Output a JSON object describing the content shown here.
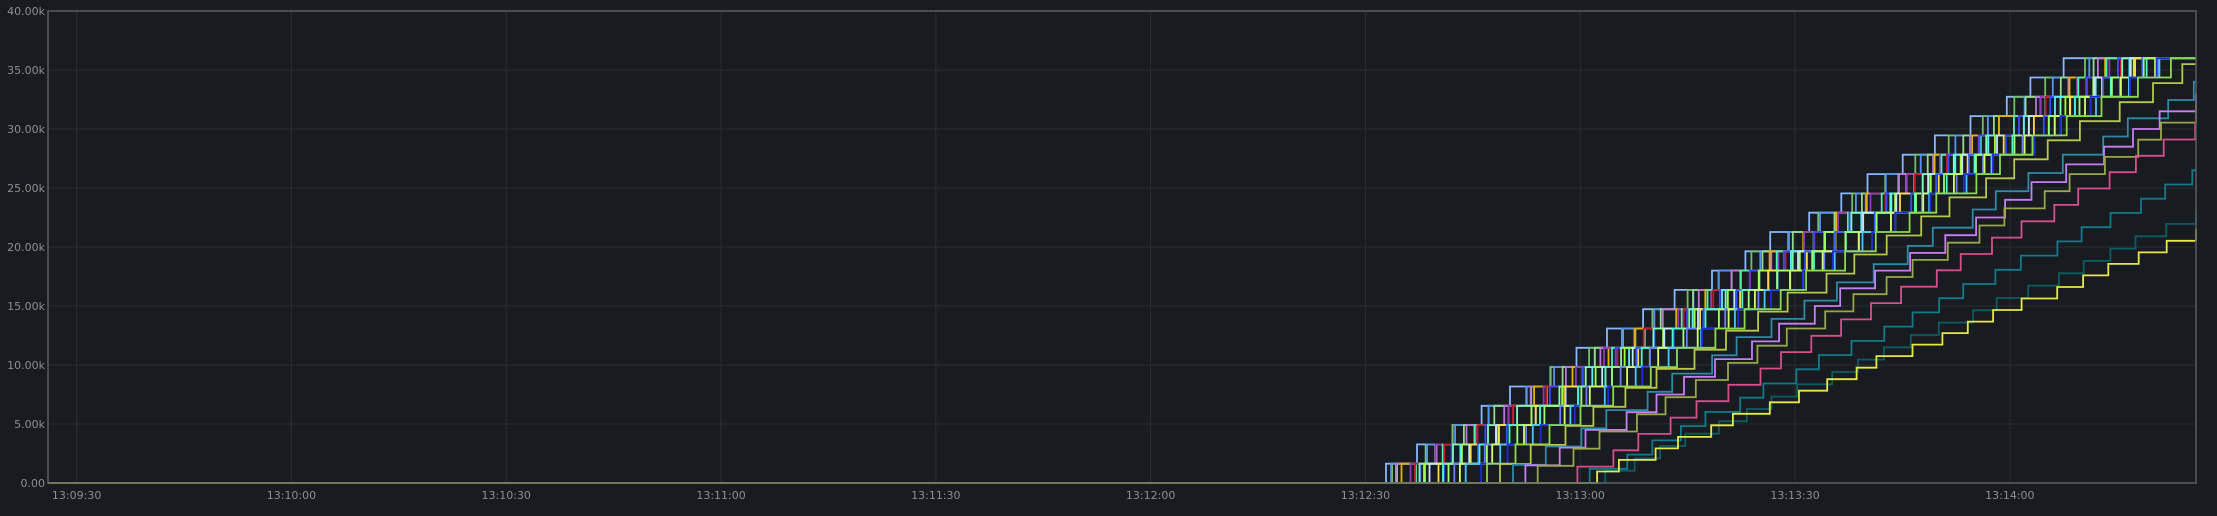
{
  "chart_data": {
    "type": "line",
    "step": true,
    "grid": true,
    "x_min": "13:09:26",
    "x_max": "13:14:26",
    "ylim": [
      0,
      40000
    ],
    "y_ticks": [
      {
        "value": 0,
        "label": "0.00"
      },
      {
        "value": 5000,
        "label": "5.00k"
      },
      {
        "value": 10000,
        "label": "10.00k"
      },
      {
        "value": 15000,
        "label": "15.00k"
      },
      {
        "value": 20000,
        "label": "20.00k"
      },
      {
        "value": 25000,
        "label": "25.00k"
      },
      {
        "value": 30000,
        "label": "30.00k"
      },
      {
        "value": 35000,
        "label": "35.00k"
      },
      {
        "value": 40000,
        "label": "40.00k"
      }
    ],
    "x_ticks": [
      {
        "value": "13:09:30",
        "label": "13:09:30"
      },
      {
        "value": "13:10:00",
        "label": "13:10:00"
      },
      {
        "value": "13:10:30",
        "label": "13:10:30"
      },
      {
        "value": "13:11:00",
        "label": "13:11:00"
      },
      {
        "value": "13:11:30",
        "label": "13:11:30"
      },
      {
        "value": "13:12:00",
        "label": "13:12:00"
      },
      {
        "value": "13:12:30",
        "label": "13:12:30"
      },
      {
        "value": "13:13:00",
        "label": "13:13:00"
      },
      {
        "value": "13:13:30",
        "label": "13:13:30"
      },
      {
        "value": "13:14:00",
        "label": "13:14:00"
      }
    ],
    "series": [
      {
        "color": "#8ab8ff",
        "start": "13:12:28",
        "end": "13:14:08",
        "final": 36000
      },
      {
        "color": "#73bf69",
        "start": "13:12:29",
        "end": "13:14:10",
        "final": 36000
      },
      {
        "color": "#5794f2",
        "start": "13:12:29",
        "end": "13:14:11",
        "final": 36000
      },
      {
        "color": "#96d98d",
        "start": "13:12:30",
        "end": "13:14:12",
        "final": 36000
      },
      {
        "color": "#b877d9",
        "start": "13:12:30",
        "end": "13:14:13",
        "final": 36000
      },
      {
        "color": "#e0b400",
        "start": "13:12:31",
        "end": "13:14:13",
        "final": 36000
      },
      {
        "color": "#8f3bb8",
        "start": "13:12:31",
        "end": "13:14:14",
        "final": 36000
      },
      {
        "color": "#4ff1b0",
        "start": "13:12:32",
        "end": "13:14:14",
        "final": 36000
      },
      {
        "color": "#c4162a",
        "start": "13:12:32",
        "end": "13:14:15",
        "final": 36000
      },
      {
        "color": "#3b49ff",
        "start": "13:12:33",
        "end": "13:14:15",
        "final": 36000
      },
      {
        "color": "#7dffb0",
        "start": "13:12:33",
        "end": "13:14:16",
        "final": 36000
      },
      {
        "color": "#56f0ff",
        "start": "13:12:34",
        "end": "13:14:16",
        "final": 36000
      },
      {
        "color": "#a6ff3c",
        "start": "13:12:34",
        "end": "13:14:17",
        "final": 36000
      },
      {
        "color": "#c5e6ff",
        "start": "13:12:35",
        "end": "13:14:17",
        "final": 36000
      },
      {
        "color": "#ffd94c",
        "start": "13:12:35",
        "end": "13:14:18",
        "final": 36000
      },
      {
        "color": "#2f52ff",
        "start": "13:12:36",
        "end": "13:14:18",
        "final": 36000
      },
      {
        "color": "#48ffc8",
        "start": "13:12:36",
        "end": "13:14:19",
        "final": 36000
      },
      {
        "color": "#9dff72",
        "start": "13:12:37",
        "end": "13:14:19",
        "final": 36000
      },
      {
        "color": "#6a7dff",
        "start": "13:12:38",
        "end": "13:14:20",
        "final": 36000
      },
      {
        "color": "#d4ff69",
        "start": "13:12:39",
        "end": "13:14:20",
        "final": 36000
      },
      {
        "color": "#4ac6ff",
        "start": "13:12:40",
        "end": "13:14:21",
        "final": 36000
      },
      {
        "color": "#1f2bd9",
        "start": "13:12:41",
        "end": "13:14:21",
        "final": 36000
      },
      {
        "color": "#8bd94c",
        "start": "13:12:42",
        "end": "13:14:22",
        "final": 36000
      },
      {
        "color": "#b8c84a",
        "start": "13:12:44",
        "end": "13:14:24",
        "final": 35500
      },
      {
        "color": "#2e8aa6",
        "start": "13:12:46",
        "end": "13:14:26",
        "final": 34000
      },
      {
        "color": "#c77ff5",
        "start": "13:12:48",
        "end": "13:14:26",
        "final": 33000
      },
      {
        "color": "#9ba64a",
        "start": "13:12:50",
        "end": "13:14:26",
        "final": 32000
      },
      {
        "color": "#d64f8a",
        "start": "13:12:56",
        "end": "13:14:26",
        "final": 30500
      },
      {
        "color": "#117a8b",
        "start": "13:12:58",
        "end": "13:14:26",
        "final": 26500
      },
      {
        "color": "#0d5c63",
        "start": "13:12:59",
        "end": "13:14:26",
        "final": 23000
      },
      {
        "color": "#e5ea45",
        "start": "13:12:58",
        "end": "13:14:26",
        "final": 21500
      }
    ]
  }
}
